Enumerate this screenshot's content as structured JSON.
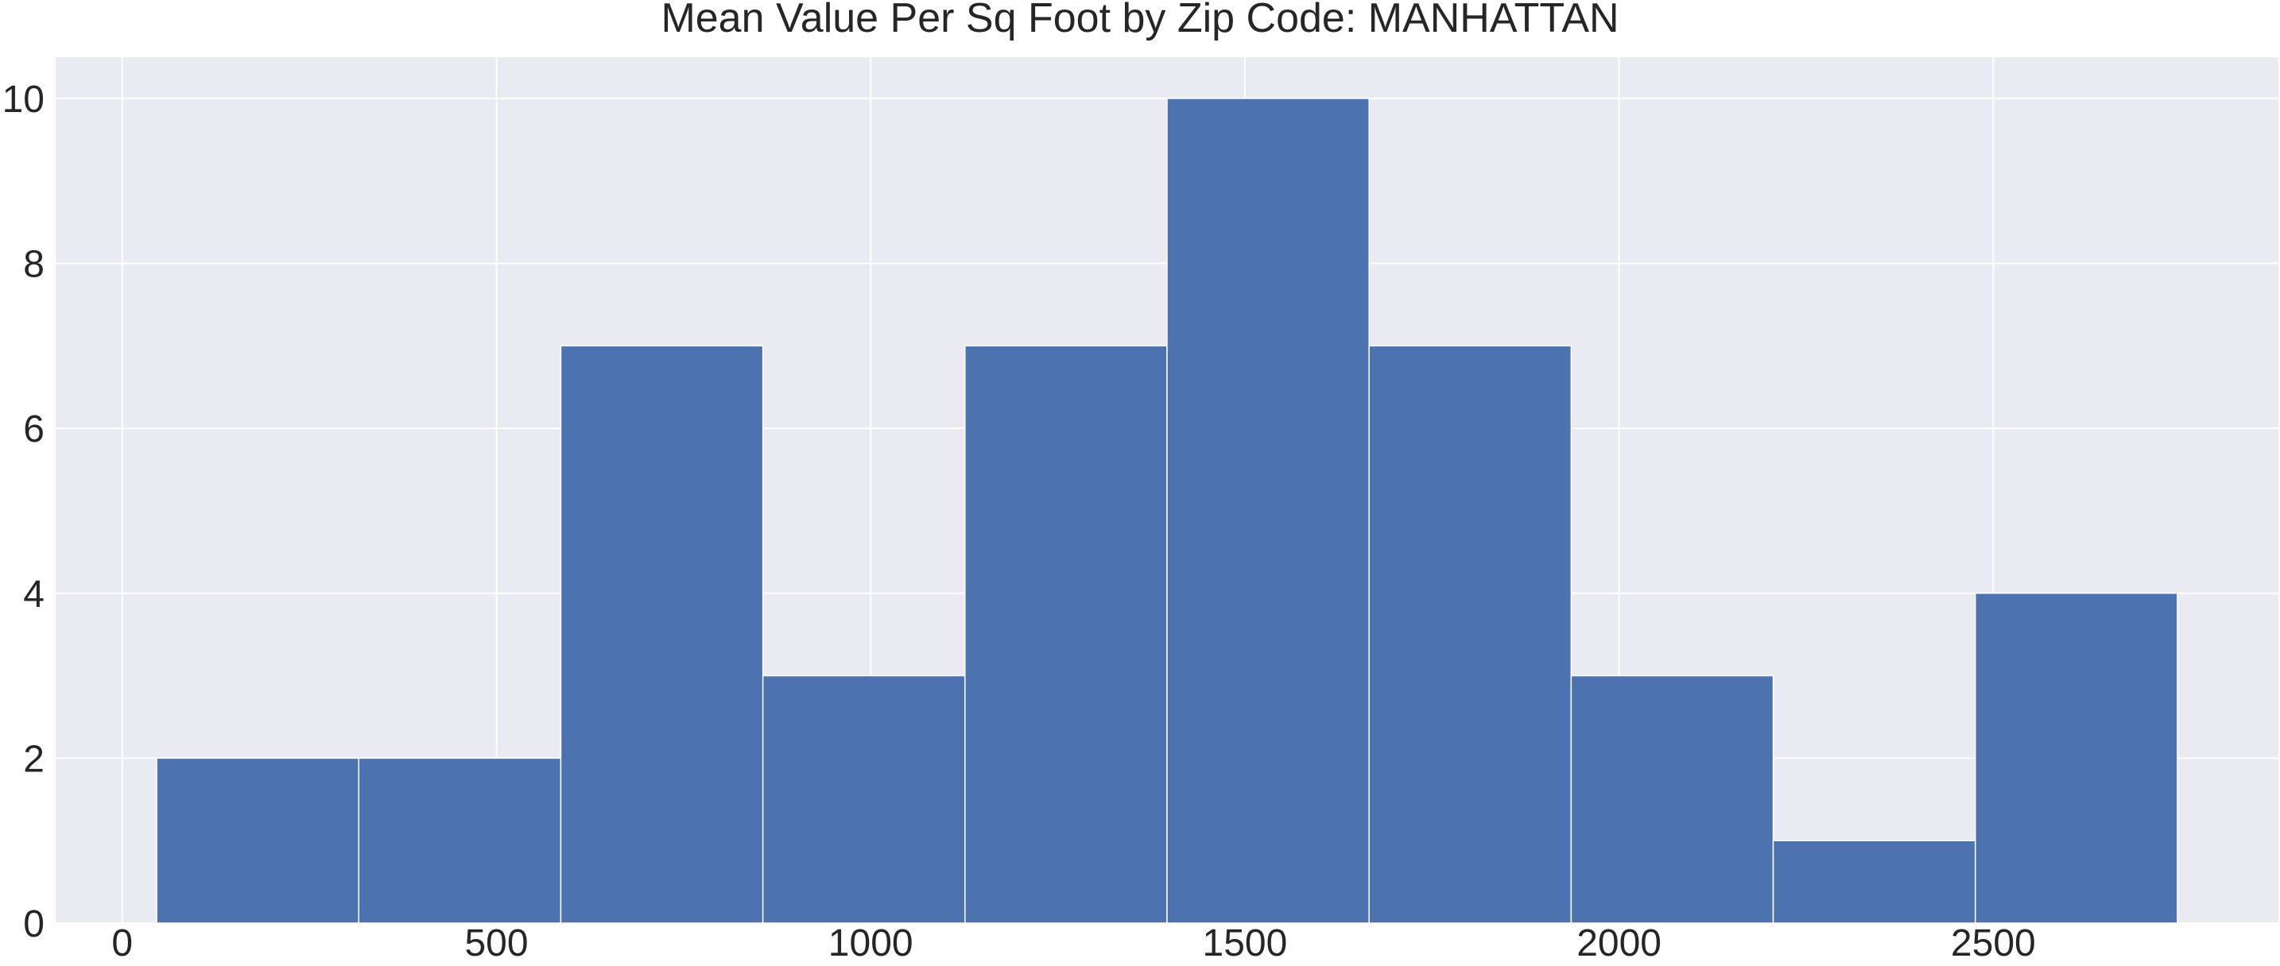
{
  "chart_data": {
    "type": "bar",
    "title": "Mean Value Per Sq Foot by Zip Code: MANHATTAN",
    "xlabel": "",
    "ylabel": "",
    "bins": [
      {
        "x0": 46,
        "x1": 316,
        "count": 2
      },
      {
        "x0": 316,
        "x1": 586,
        "count": 2
      },
      {
        "x0": 586,
        "x1": 856,
        "count": 7
      },
      {
        "x0": 856,
        "x1": 1126,
        "count": 3
      },
      {
        "x0": 1126,
        "x1": 1396,
        "count": 7
      },
      {
        "x0": 1396,
        "x1": 1666,
        "count": 10
      },
      {
        "x0": 1666,
        "x1": 1936,
        "count": 7
      },
      {
        "x0": 1936,
        "x1": 2206,
        "count": 3
      },
      {
        "x0": 2206,
        "x1": 2476,
        "count": 1
      },
      {
        "x0": 2476,
        "x1": 2746,
        "count": 4
      }
    ],
    "xlim": [
      -89,
      2881
    ],
    "ylim": [
      0,
      10.5
    ],
    "x_ticks": [
      0,
      500,
      1000,
      1500,
      2000,
      2500
    ],
    "x_tick_labels": [
      "0",
      "500",
      "1000",
      "1500",
      "2000",
      "2500"
    ],
    "y_ticks": [
      0,
      2,
      4,
      6,
      8,
      10
    ],
    "y_tick_labels": [
      "0",
      "2",
      "4",
      "6",
      "8",
      "10"
    ],
    "grid": true,
    "legend": "none",
    "colors": {
      "bar": "#4C72B0",
      "bar_edge": "#ffffff",
      "plot_background": "#EAEAF2",
      "grid": "#ffffff",
      "text": "#262626"
    }
  }
}
